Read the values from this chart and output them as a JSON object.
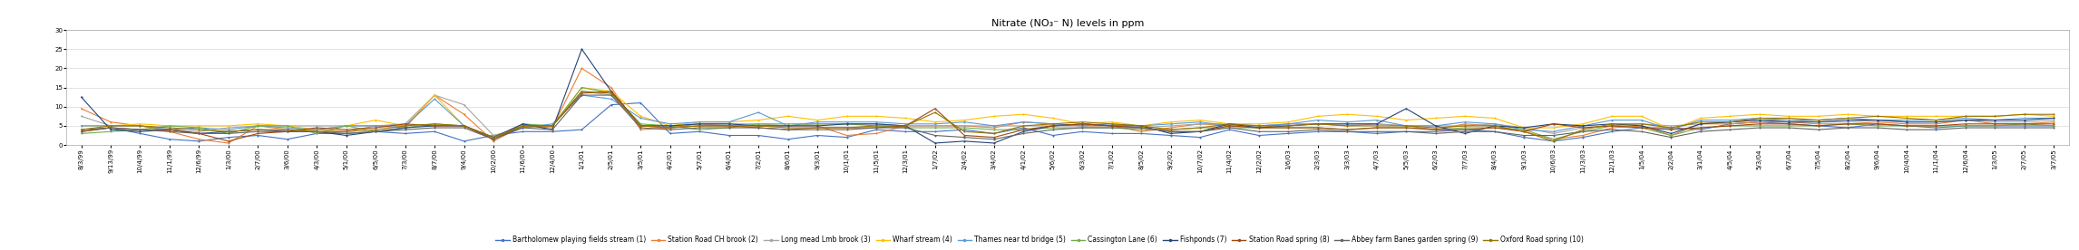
{
  "title": "Nitrate (NO₃⁻ N) levels in ppm",
  "ylim": [
    0,
    30
  ],
  "yticks": [
    0,
    5,
    10,
    15,
    20,
    25,
    30
  ],
  "series": [
    {
      "label": "Bartholomew playing fields stream (1)",
      "color": "#4472C4",
      "values": [
        3.5,
        4.5,
        3.0,
        1.5,
        1.0,
        2.0,
        2.5,
        1.5,
        3.0,
        3.0,
        3.5,
        3.0,
        3.5,
        1.0,
        2.5,
        3.5,
        3.5,
        4.0,
        10.5,
        11.0,
        3.0,
        3.5,
        2.5,
        2.5,
        1.5,
        2.5,
        2.0,
        4.0,
        3.5,
        3.5,
        4.0,
        3.0,
        4.5,
        2.5,
        3.5,
        3.0,
        3.0,
        2.5,
        2.0,
        4.0,
        2.5,
        3.0,
        3.5,
        3.5,
        3.0,
        3.5,
        3.5,
        4.0,
        3.5,
        2.0,
        1.0,
        2.0,
        3.5,
        4.5,
        4.5,
        4.0,
        5.5,
        6.0,
        5.5,
        5.0,
        4.5,
        5.5,
        5.0,
        4.5,
        5.0,
        5.0,
        5.0,
        5.0
      ]
    },
    {
      "label": "Station Road CH brook (2)",
      "color": "#ED7D31",
      "values": [
        9.5,
        6.0,
        5.0,
        3.5,
        1.5,
        0.5,
        5.0,
        4.0,
        4.0,
        3.5,
        5.0,
        4.5,
        13.0,
        8.0,
        1.0,
        5.0,
        4.5,
        20.0,
        15.0,
        4.0,
        4.5,
        5.5,
        5.0,
        5.0,
        5.0,
        5.0,
        2.5,
        3.0,
        5.0,
        5.0,
        5.0,
        4.5,
        6.0,
        5.5,
        5.0,
        5.0,
        3.5,
        4.5,
        5.5,
        5.0,
        4.5,
        5.5,
        5.5,
        5.0,
        5.5,
        5.0,
        4.0,
        5.5,
        5.0,
        3.5,
        1.5,
        2.5,
        4.5,
        5.0,
        2.5,
        5.5,
        5.5,
        6.0,
        6.0,
        5.5,
        5.5,
        6.0,
        5.5,
        5.5,
        6.5,
        5.5,
        5.5,
        6.0
      ]
    },
    {
      "label": "Long mead Lmb brook (3)",
      "color": "#A5A5A5",
      "values": [
        7.5,
        5.0,
        5.0,
        4.0,
        3.5,
        4.5,
        5.0,
        5.0,
        5.0,
        5.0,
        5.0,
        5.5,
        13.0,
        10.5,
        2.5,
        4.5,
        5.0,
        14.0,
        13.0,
        5.0,
        5.0,
        5.5,
        5.5,
        5.5,
        5.0,
        5.5,
        5.5,
        5.5,
        5.0,
        5.0,
        5.0,
        5.0,
        5.0,
        5.0,
        5.0,
        5.0,
        4.5,
        5.0,
        5.5,
        5.5,
        5.0,
        5.5,
        5.5,
        5.5,
        5.5,
        5.0,
        5.0,
        5.0,
        5.5,
        4.5,
        3.0,
        4.5,
        5.0,
        5.5,
        5.0,
        5.5,
        6.0,
        6.5,
        6.5,
        6.0,
        6.0,
        6.5,
        6.0,
        6.0,
        6.5,
        6.0,
        6.0,
        6.5
      ]
    },
    {
      "label": "Wharf stream (4)",
      "color": "#FFC000",
      "values": [
        5.0,
        5.0,
        5.5,
        5.0,
        5.0,
        5.0,
        5.5,
        5.0,
        4.0,
        5.0,
        6.5,
        5.0,
        13.0,
        5.0,
        2.0,
        5.0,
        5.0,
        15.0,
        14.0,
        7.5,
        5.0,
        6.0,
        6.0,
        6.5,
        7.5,
        6.5,
        7.5,
        7.5,
        7.0,
        6.0,
        6.5,
        7.5,
        8.0,
        7.0,
        5.5,
        6.0,
        5.0,
        6.0,
        6.5,
        5.5,
        5.5,
        6.0,
        7.5,
        8.0,
        7.5,
        6.5,
        7.0,
        7.5,
        7.0,
        4.5,
        4.5,
        5.5,
        7.5,
        7.5,
        4.0,
        7.0,
        7.5,
        8.0,
        7.5,
        7.5,
        8.0,
        7.5,
        7.5,
        7.5,
        7.5,
        7.5,
        8.0,
        7.5
      ]
    },
    {
      "label": "Thames near td bridge (5)",
      "color": "#5B9BD5",
      "values": [
        5.0,
        5.0,
        5.0,
        4.0,
        4.5,
        4.0,
        5.0,
        4.5,
        4.0,
        5.0,
        5.0,
        5.0,
        12.0,
        5.0,
        2.0,
        4.5,
        5.5,
        13.0,
        12.0,
        7.0,
        5.5,
        6.0,
        6.0,
        8.5,
        5.0,
        6.0,
        6.0,
        6.0,
        5.5,
        5.5,
        6.0,
        5.0,
        6.0,
        5.5,
        5.0,
        5.5,
        5.0,
        5.5,
        6.0,
        5.0,
        5.0,
        5.5,
        6.5,
        6.0,
        6.5,
        5.0,
        5.0,
        6.0,
        5.5,
        4.0,
        3.5,
        5.0,
        6.5,
        6.5,
        4.0,
        6.5,
        6.5,
        7.0,
        6.5,
        6.5,
        7.0,
        6.5,
        6.5,
        6.5,
        7.0,
        6.5,
        7.0,
        7.0
      ]
    },
    {
      "label": "Cassington Lane (6)",
      "color": "#70AD47",
      "values": [
        3.0,
        3.5,
        4.0,
        5.0,
        4.5,
        3.0,
        5.0,
        5.0,
        3.0,
        5.0,
        3.5,
        4.5,
        5.5,
        5.0,
        1.5,
        5.5,
        5.0,
        15.0,
        13.5,
        5.5,
        5.0,
        4.0,
        4.5,
        5.5,
        5.5,
        5.5,
        5.5,
        5.0,
        4.5,
        4.5,
        4.5,
        4.0,
        4.0,
        4.5,
        4.5,
        4.5,
        4.0,
        4.0,
        4.5,
        4.5,
        4.5,
        4.5,
        4.5,
        4.0,
        4.5,
        4.5,
        4.0,
        4.5,
        4.5,
        4.0,
        1.5,
        3.5,
        5.0,
        4.5,
        2.5,
        4.5,
        5.0,
        5.0,
        5.0,
        5.0,
        5.5,
        5.0,
        5.0,
        5.0,
        5.0,
        5.0,
        5.5,
        5.0
      ]
    },
    {
      "label": "Fishponds (7)",
      "color": "#264478",
      "values": [
        12.5,
        4.0,
        3.5,
        4.0,
        3.0,
        3.5,
        4.0,
        3.5,
        3.5,
        2.5,
        3.5,
        4.5,
        5.0,
        5.0,
        2.0,
        5.5,
        4.0,
        25.0,
        14.0,
        5.0,
        5.0,
        5.5,
        5.5,
        5.0,
        5.0,
        5.0,
        5.5,
        5.5,
        5.0,
        0.5,
        1.0,
        0.5,
        3.5,
        5.0,
        5.5,
        5.0,
        5.0,
        3.0,
        3.5,
        5.5,
        4.5,
        5.0,
        5.5,
        5.5,
        5.5,
        9.5,
        5.0,
        3.0,
        5.0,
        4.5,
        5.5,
        5.0,
        5.5,
        5.0,
        3.0,
        5.5,
        6.0,
        6.5,
        6.0,
        6.0,
        6.5,
        6.5,
        6.0,
        6.0,
        6.5,
        6.5,
        6.5,
        7.0
      ]
    },
    {
      "label": "Station Road spring (8)",
      "color": "#9E480E",
      "values": [
        3.5,
        4.5,
        4.0,
        4.0,
        3.0,
        1.0,
        3.0,
        3.5,
        4.5,
        4.0,
        4.5,
        5.5,
        5.0,
        5.0,
        1.5,
        5.0,
        5.0,
        13.5,
        14.0,
        5.0,
        4.5,
        5.0,
        5.0,
        4.5,
        4.0,
        4.5,
        4.5,
        4.5,
        5.0,
        9.5,
        2.5,
        2.0,
        4.0,
        5.0,
        5.5,
        5.0,
        4.5,
        3.5,
        3.5,
        5.0,
        4.5,
        4.5,
        4.5,
        4.0,
        4.5,
        4.5,
        4.0,
        4.0,
        4.5,
        3.5,
        5.5,
        4.5,
        5.0,
        4.5,
        4.0,
        4.5,
        5.0,
        5.5,
        5.5,
        5.0,
        5.5,
        5.5,
        5.0,
        5.0,
        5.5,
        5.5,
        5.5,
        5.5
      ]
    },
    {
      "label": "Abbey farm Banes garden spring (9)",
      "color": "#636363",
      "values": [
        4.0,
        4.5,
        4.0,
        3.5,
        3.0,
        3.0,
        3.5,
        3.5,
        3.5,
        3.0,
        3.5,
        4.0,
        4.5,
        4.5,
        1.5,
        4.5,
        4.0,
        13.0,
        13.0,
        4.5,
        4.0,
        4.5,
        4.5,
        4.5,
        4.0,
        4.0,
        4.0,
        4.5,
        4.5,
        2.5,
        2.0,
        1.5,
        3.0,
        4.0,
        4.5,
        4.5,
        4.5,
        3.5,
        3.5,
        4.5,
        3.5,
        3.5,
        4.0,
        3.5,
        3.5,
        3.5,
        3.0,
        3.5,
        3.5,
        2.5,
        2.5,
        3.5,
        4.0,
        3.5,
        2.0,
        3.5,
        4.0,
        4.5,
        4.5,
        4.0,
        4.5,
        4.5,
        4.0,
        4.0,
        4.5,
        4.5,
        4.5,
        4.5
      ]
    },
    {
      "label": "Oxford Road spring (10)",
      "color": "#997300",
      "values": [
        4.0,
        5.0,
        5.0,
        4.5,
        4.0,
        3.5,
        4.0,
        4.0,
        3.5,
        3.5,
        4.0,
        5.0,
        5.5,
        5.0,
        2.0,
        5.0,
        5.0,
        14.0,
        13.5,
        5.0,
        4.5,
        5.0,
        5.0,
        5.0,
        4.5,
        4.5,
        4.5,
        5.0,
        5.0,
        8.5,
        3.5,
        3.0,
        5.0,
        5.5,
        6.0,
        5.5,
        5.0,
        4.0,
        4.5,
        5.5,
        5.0,
        5.0,
        5.5,
        5.0,
        5.0,
        5.0,
        4.5,
        5.0,
        5.0,
        3.5,
        1.0,
        4.0,
        5.5,
        5.5,
        4.5,
        6.0,
        6.0,
        7.0,
        7.0,
        6.5,
        7.0,
        7.5,
        7.0,
        6.5,
        7.5,
        7.5,
        8.0,
        8.0
      ]
    }
  ],
  "x_labels": [
    "8/3/99",
    "9/13/99",
    "10/4/99",
    "11/1/99",
    "12/6/99",
    "1/3/00",
    "2/7/00",
    "3/6/00",
    "4/3/00",
    "5/1/00",
    "6/5/00",
    "7/3/00",
    "8/7/00",
    "9/4/00",
    "10/2/00",
    "11/6/00",
    "12/4/00",
    "1/1/01",
    "2/5/01",
    "3/5/01",
    "4/2/01",
    "5/7/01",
    "6/4/01",
    "7/2/01",
    "8/6/01",
    "9/3/01",
    "10/1/01",
    "11/5/01",
    "12/3/01",
    "1/7/02",
    "2/4/02",
    "3/4/02",
    "4/1/02",
    "5/6/02",
    "6/3/02",
    "7/1/02",
    "8/5/02",
    "9/2/02",
    "10/7/02",
    "11/4/02",
    "12/2/02",
    "1/6/03",
    "2/3/03",
    "3/3/03",
    "4/7/03",
    "5/5/03",
    "6/2/03",
    "7/7/03",
    "8/4/03",
    "9/1/03",
    "10/6/03",
    "11/3/03",
    "12/1/03",
    "1/5/04",
    "2/2/04",
    "3/1/04",
    "4/5/04",
    "5/3/04",
    "6/7/04",
    "7/5/04",
    "8/2/04",
    "9/6/04",
    "10/4/04",
    "11/1/04",
    "12/6/04",
    "1/3/05",
    "2/7/05",
    "3/7/05"
  ],
  "background_color": "#FFFFFF",
  "grid_color": "#D9D9D9",
  "title_fontsize": 8,
  "axis_fontsize": 5,
  "legend_fontsize": 5.5,
  "linewidth": 0.8,
  "markersize": 1.5
}
